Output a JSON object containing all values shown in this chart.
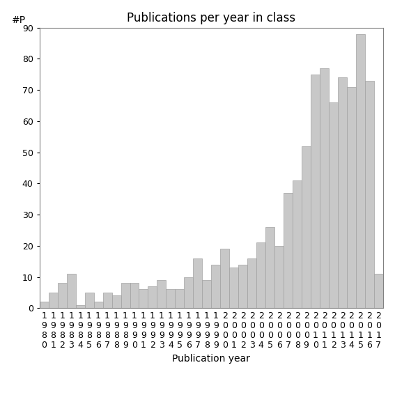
{
  "title": "Publications per year in class",
  "xlabel": "Publication year",
  "ylabel": "#P",
  "years": [
    "1980",
    "1981",
    "1982",
    "1983",
    "1984",
    "1985",
    "1986",
    "1987",
    "1988",
    "1989",
    "1990",
    "1991",
    "1992",
    "1993",
    "1994",
    "1995",
    "1996",
    "1997",
    "1998",
    "1999",
    "2000",
    "2001",
    "2002",
    "2003",
    "2004",
    "2005",
    "2006",
    "2007",
    "2008",
    "2009",
    "2010",
    "2011",
    "2012",
    "2013",
    "2014",
    "2015",
    "2016",
    "2017"
  ],
  "values": [
    2,
    5,
    8,
    11,
    1,
    5,
    2,
    5,
    4,
    8,
    8,
    6,
    7,
    9,
    6,
    6,
    10,
    16,
    9,
    14,
    19,
    13,
    14,
    16,
    21,
    26,
    20,
    37,
    41,
    52,
    75,
    77,
    66,
    74,
    71,
    88,
    73,
    11
  ],
  "bar_color": "#c8c8c8",
  "bar_edgecolor": "#a0a0a0",
  "ylim": [
    0,
    90
  ],
  "yticks": [
    0,
    10,
    20,
    30,
    40,
    50,
    60,
    70,
    80,
    90
  ],
  "background_color": "#ffffff",
  "title_fontsize": 12,
  "label_fontsize": 10,
  "tick_fontsize": 9
}
